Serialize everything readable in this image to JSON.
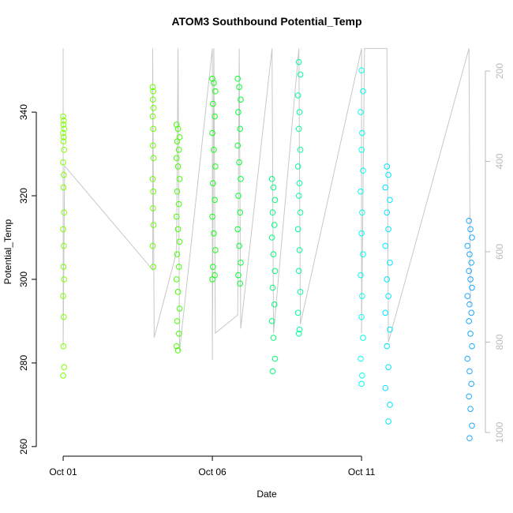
{
  "chart_data": {
    "type": "scatter",
    "title": "ATOM3 Southbound Potential_Temp",
    "xlabel": "Date",
    "ylabel": "Potential_Temp",
    "xlim": [
      -0.53,
      14.15
    ],
    "ylim": [
      257.7,
      355.5
    ],
    "y2lim": [
      147.6,
      1052.4
    ],
    "y2_reversed": true,
    "xticks": [
      {
        "value": 0,
        "label": "Oct 01"
      },
      {
        "value": 5,
        "label": "Oct 06"
      },
      {
        "value": 10,
        "label": "Oct 11"
      }
    ],
    "yticks": [
      260,
      280,
      300,
      320,
      340
    ],
    "y2ticks": [
      200,
      400,
      600,
      800,
      1000
    ],
    "series": [
      {
        "color": "#7fff00",
        "x": [
          0.0,
          0.02,
          0.01,
          0.03,
          0.0,
          0.02,
          0.01,
          0.03,
          0.0,
          0.02,
          0.01,
          0.03,
          0.0,
          0.02,
          0.01,
          0.03,
          0.0,
          0.02,
          0.01,
          0.03,
          0.0
        ],
        "values": [
          339,
          338,
          337,
          336,
          335,
          334,
          333,
          331,
          328,
          325,
          322,
          316,
          312,
          308,
          303,
          300,
          296,
          291,
          284,
          279,
          277
        ]
      },
      {
        "color": "#66ff00",
        "x": [
          3.0,
          3.02,
          3.01,
          3.03,
          3.0,
          3.02,
          3.01,
          3.03,
          3.0,
          3.02,
          3.01,
          3.03,
          3.0,
          3.02
        ],
        "values": [
          346,
          345,
          343,
          341,
          339,
          336,
          332,
          329,
          324,
          321,
          317,
          313,
          308,
          303
        ]
      },
      {
        "color": "#44ff00",
        "x": [
          3.8,
          3.85,
          3.9,
          3.82,
          3.88,
          3.8,
          3.85,
          3.9,
          3.82,
          3.88,
          3.8,
          3.85,
          3.9,
          3.82,
          3.88,
          3.8,
          3.85,
          3.9,
          3.82,
          3.88,
          3.8,
          3.85
        ],
        "values": [
          337,
          336,
          334,
          333,
          331,
          329,
          327,
          324,
          321,
          318,
          315,
          312,
          309,
          306,
          303,
          300,
          297,
          293,
          290,
          287,
          284,
          283
        ]
      },
      {
        "color": "#11ff11",
        "x": [
          5.0,
          5.05,
          5.1,
          5.02,
          5.08,
          5.0,
          5.05,
          5.1,
          5.02,
          5.08,
          5.0,
          5.05,
          5.1,
          5.02,
          5.08,
          5.0
        ],
        "values": [
          348,
          347,
          345,
          342,
          339,
          335,
          331,
          327,
          323,
          319,
          315,
          311,
          307,
          303,
          301,
          300
        ]
      },
      {
        "color": "#00ff33",
        "x": [
          5.85,
          5.9,
          5.95,
          5.87,
          5.93,
          5.85,
          5.9,
          5.95,
          5.87,
          5.93,
          5.85,
          5.9,
          5.95,
          5.87,
          5.93
        ],
        "values": [
          348,
          346,
          343,
          340,
          336,
          332,
          328,
          324,
          320,
          316,
          312,
          308,
          304,
          301,
          299
        ]
      },
      {
        "color": "#00ff77",
        "x": [
          7.0,
          7.05,
          7.1,
          7.02,
          7.08,
          7.0,
          7.05,
          7.1,
          7.02,
          7.08,
          7.0,
          7.05,
          7.1,
          7.02
        ],
        "values": [
          324,
          322,
          319,
          316,
          313,
          310,
          306,
          302,
          298,
          294,
          290,
          286,
          281,
          278
        ]
      },
      {
        "color": "#00ff99",
        "x": [
          7.9,
          7.95,
          7.87,
          7.92,
          7.9,
          7.95,
          7.87,
          7.92,
          7.9,
          7.95,
          7.87,
          7.92,
          7.9,
          7.95,
          7.87,
          7.92,
          7.9
        ],
        "values": [
          352,
          349,
          344,
          340,
          336,
          331,
          327,
          323,
          320,
          316,
          312,
          307,
          302,
          297,
          292,
          288,
          287
        ]
      },
      {
        "color": "#00ffee",
        "x": [
          10.0,
          10.05,
          9.97,
          10.02,
          10.0,
          10.05,
          9.97,
          10.02,
          10.0,
          10.05,
          9.97,
          10.02,
          10.0,
          10.05,
          9.97,
          10.02,
          10.0
        ],
        "values": [
          350,
          345,
          340,
          335,
          331,
          326,
          321,
          316,
          311,
          306,
          301,
          296,
          291,
          286,
          281,
          277,
          275
        ]
      },
      {
        "color": "#00e6ff",
        "x": [
          10.85,
          10.9,
          10.8,
          10.95,
          10.85,
          10.9,
          10.8,
          10.95,
          10.85,
          10.9,
          10.8,
          10.95,
          10.85,
          10.9,
          10.8,
          10.95,
          10.9
        ],
        "values": [
          327,
          325,
          322,
          319,
          316,
          312,
          308,
          304,
          300,
          296,
          292,
          288,
          284,
          279,
          274,
          270,
          266
        ]
      },
      {
        "color": "#1eaaff",
        "x": [
          13.6,
          13.65,
          13.7,
          13.55,
          13.62,
          13.68,
          13.6,
          13.65,
          13.7,
          13.55,
          13.62,
          13.68,
          13.6,
          13.65,
          13.7,
          13.55,
          13.62,
          13.68,
          13.6,
          13.65,
          13.7,
          13.62
        ],
        "values": [
          314,
          312,
          310,
          308,
          306,
          304,
          302,
          300,
          298,
          296,
          294,
          292,
          290,
          287,
          284,
          281,
          278,
          275,
          272,
          269,
          265,
          262
        ]
      },
      {
        "color": "#c8c8c8",
        "axis": "y2",
        "line": true,
        "x": [
          0,
          0,
          0.05,
          3.0,
          3.0,
          3.05,
          3.8,
          3.85,
          3.9,
          5.0,
          5.0,
          5.05,
          5.1,
          5.85,
          5.9,
          5.95,
          7.0,
          7.05,
          7.9,
          7.95,
          10.0,
          10.0,
          10.1,
          10.85,
          10.9,
          13.6,
          13.65
        ],
        "values": [
          150,
          810,
          410,
          640,
          150,
          790,
          600,
          150,
          820,
          150,
          840,
          150,
          780,
          740,
          150,
          770,
          150,
          780,
          150,
          760,
          150,
          780,
          150,
          150,
          800,
          150,
          720
        ]
      }
    ]
  }
}
